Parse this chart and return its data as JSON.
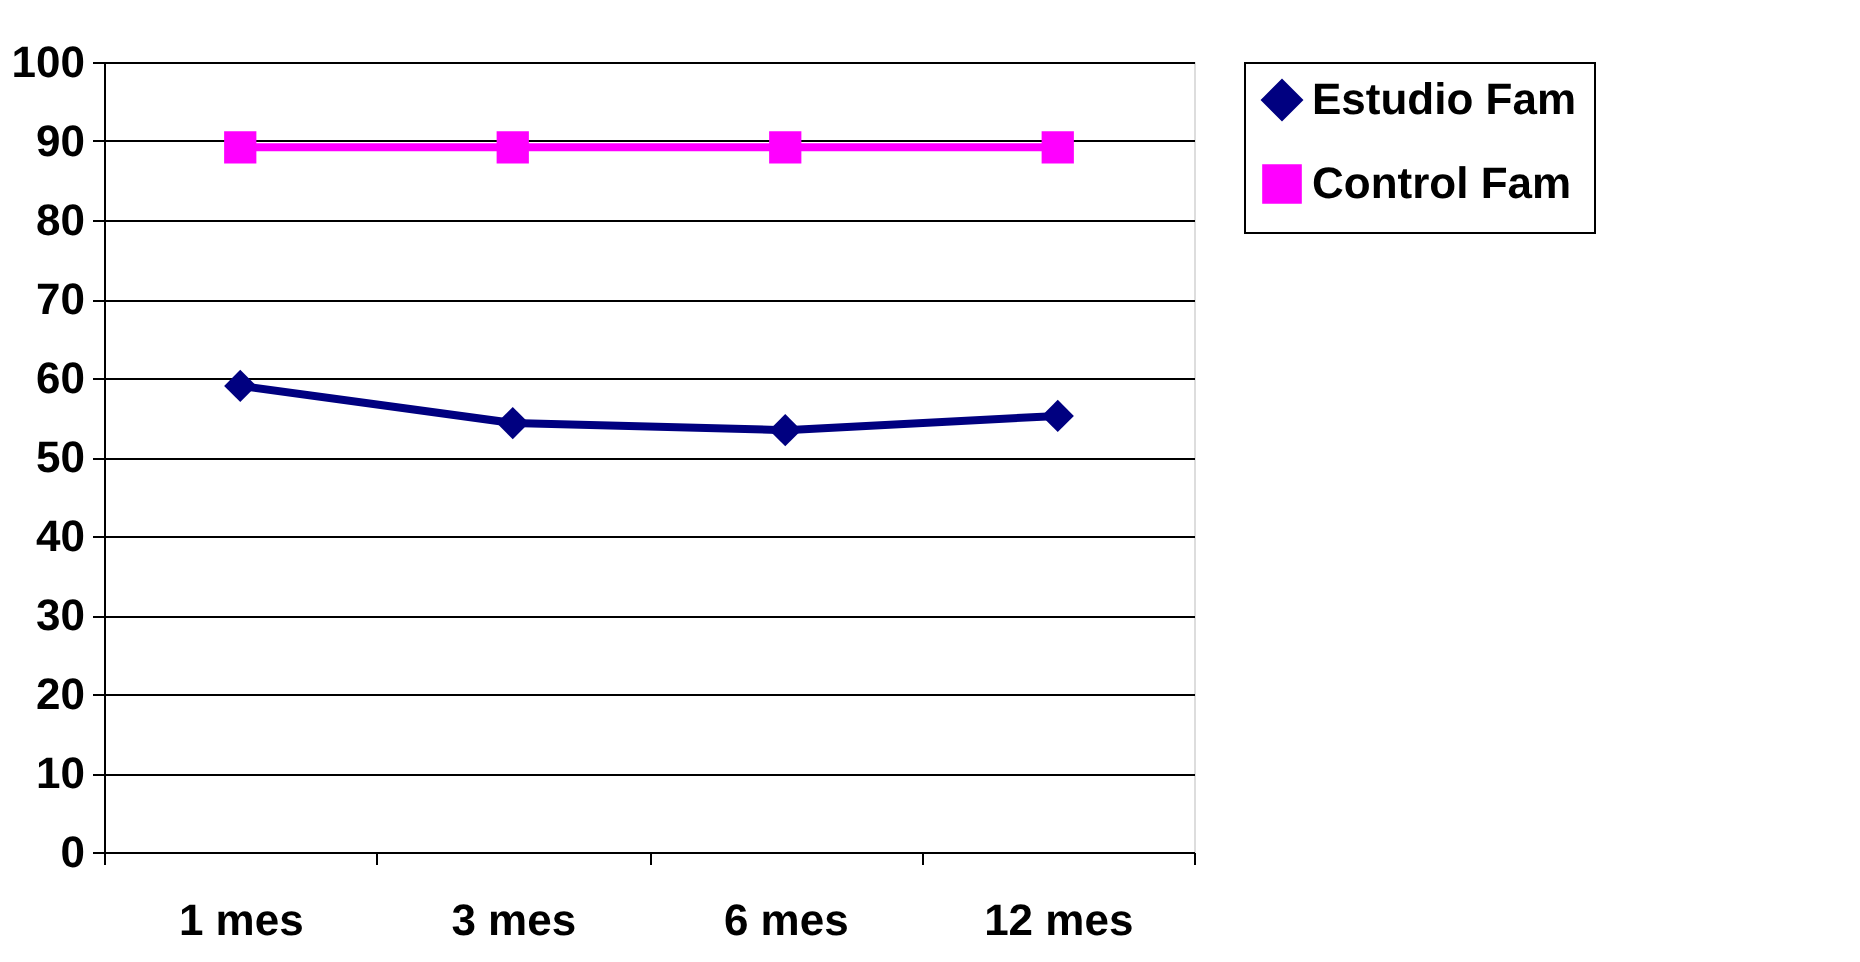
{
  "chart_data": {
    "type": "line",
    "categories": [
      "1 mes",
      "3 mes",
      "6 mes",
      "12 mes"
    ],
    "series": [
      {
        "name": "Estudio Fam",
        "color": "#000080",
        "marker": "diamond",
        "values": [
          59.0,
          54.3,
          53.4,
          55.2
        ]
      },
      {
        "name": "Control Fam",
        "color": "#ff00ff",
        "marker": "square",
        "values": [
          89.2,
          89.2,
          89.2,
          89.2
        ]
      }
    ],
    "ylim": [
      0,
      100
    ],
    "yticks": [
      0,
      10,
      20,
      30,
      40,
      50,
      60,
      70,
      80,
      90,
      100
    ],
    "grid": "y",
    "legend": "right"
  }
}
